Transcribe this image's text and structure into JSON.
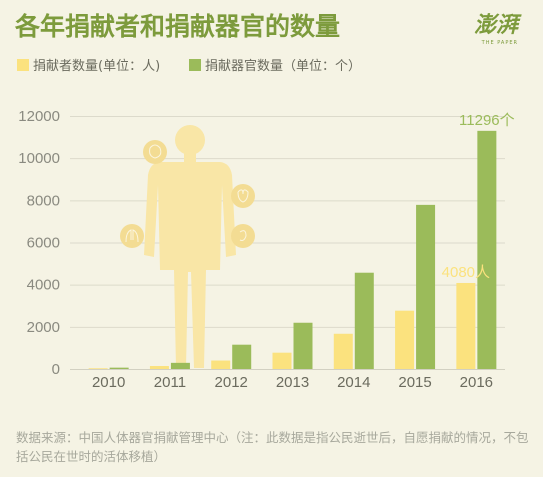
{
  "chart_data": {
    "type": "bar",
    "title": "各年捐献者和捐献器官的数量",
    "categories": [
      "2010",
      "2011",
      "2012",
      "2013",
      "2014",
      "2015",
      "2016"
    ],
    "series": [
      {
        "name": "捐献者数量(单位：人)",
        "color": "#fbe27e",
        "values": [
          34,
          141,
          402,
          774,
          1671,
          2766,
          4080
        ]
      },
      {
        "name": "捐献器官数量（单位：个）",
        "color": "#9bbb5a",
        "values": [
          64,
          292,
          1153,
          2194,
          4567,
          7785,
          11296
        ]
      }
    ],
    "data_labels": [
      {
        "series": 0,
        "index": 6,
        "text": "4080人"
      },
      {
        "series": 1,
        "index": 6,
        "text": "11296个"
      }
    ],
    "yticks": [
      "0",
      "2000",
      "4000",
      "6000",
      "8000",
      "10000",
      "12000"
    ],
    "ylim": [
      0,
      12000
    ],
    "grid": true,
    "legend_position": "top-left"
  },
  "brand": {
    "logo_text": "澎湃",
    "logo_sub": "THE PAPER",
    "color": "#7d9b3c"
  },
  "footer": {
    "source": "数据来源：中国人体器官捐献管理中心（注：此数据是指公民逝世后，自愿捐献的情况，不包括公民在世时的活体移植）"
  }
}
